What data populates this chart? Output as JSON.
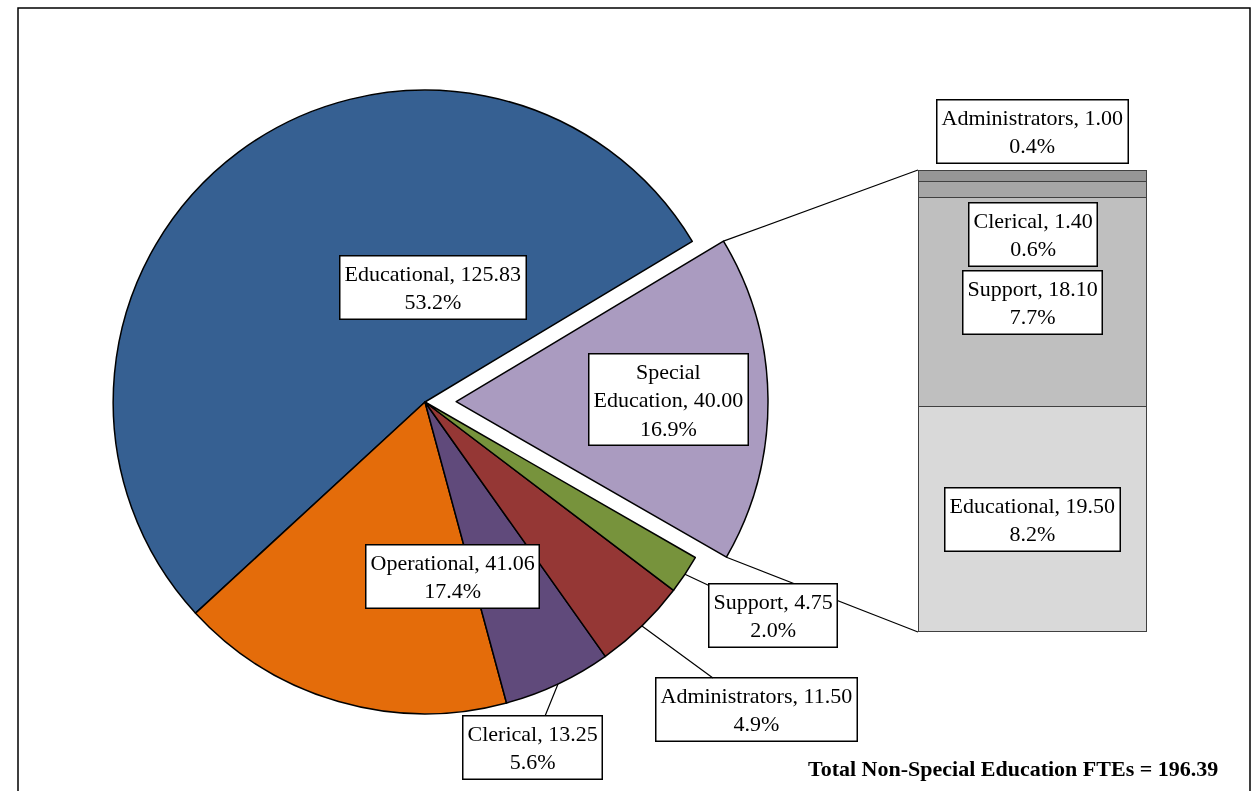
{
  "chart_data": [
    {
      "type": "pie",
      "categories": [
        "Educational",
        "Operational",
        "Clerical",
        "Administrators",
        "Support",
        "Special Education"
      ],
      "values": [
        125.83,
        41.06,
        13.25,
        11.5,
        4.75,
        40
      ],
      "colors": [
        "#366092",
        "#e46c0a",
        "#604a7b",
        "#953735",
        "#77933c",
        "#aa9bc0"
      ],
      "value_labels": [
        "125.83\n53.2%",
        "41.06\n17.4%",
        "13.25\n5.6%",
        "11.50\n4.9%",
        "4.75\n2.0%",
        "40.00\n16.9%"
      ],
      "annotations": [
        "Total Non-Special Education FTEs = 196.39"
      ]
    },
    {
      "type": "bar",
      "stacked": true,
      "categories": [
        null
      ],
      "tick_labels": false,
      "series": [
        {
          "color": "#d9d9d9",
          "values": [
            19.5
          ],
          "value_labels": [
            "Educational, 19.50\n8.2%"
          ]
        },
        {
          "color": "#bfbfbf",
          "values": [
            18.1
          ],
          "value_labels": [
            "Support, 18.10\n7.7%"
          ]
        },
        {
          "color": "#a6a6a6",
          "values": [
            1.4
          ],
          "value_labels": [
            "Clerical, 1.40\n0.6%"
          ]
        },
        {
          "color": "#969696",
          "values": [
            1
          ],
          "value_labels": [
            "Administrators, 1.00\n0.4%"
          ]
        }
      ]
    }
  ]
}
